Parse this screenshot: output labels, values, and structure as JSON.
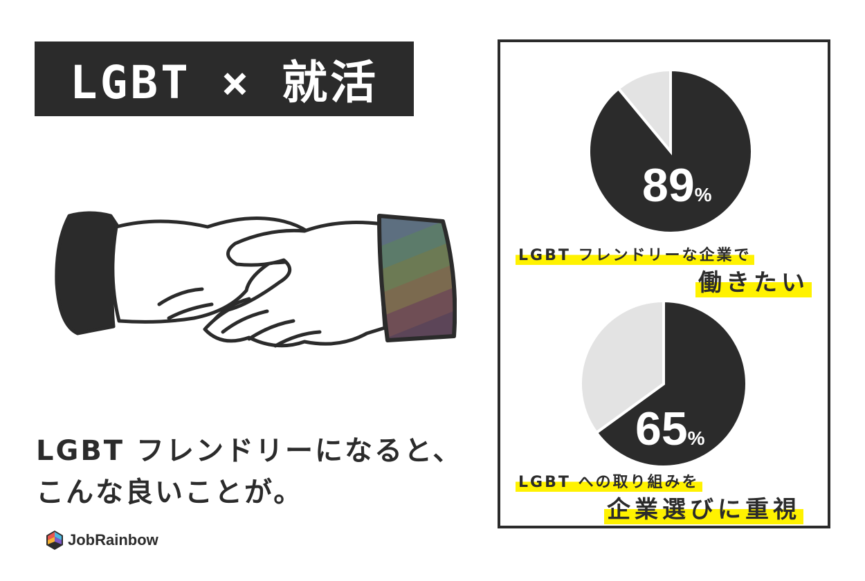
{
  "title": "LGBT × 就活",
  "caption": {
    "line1": "LGBT フレンドリーになると、",
    "line2": "こんな良いことが。"
  },
  "logo": {
    "name": "JobRainbow",
    "icon": "rainbow-gem-icon"
  },
  "colors": {
    "dark": "#2b2b2b",
    "light_slice": "#e3e3e3",
    "highlight": "#fff200",
    "cuff_stripes": [
      "#5d6f80",
      "#5c7b6a",
      "#6c7a54",
      "#7b6a4f",
      "#6f4e55",
      "#5c4558"
    ]
  },
  "chart_data": [
    {
      "type": "pie",
      "slices": [
        {
          "value": 89,
          "color": "#2b2b2b"
        },
        {
          "value": 11,
          "color": "#e3e3e3"
        }
      ],
      "percent_label": "89",
      "unit": "%",
      "caption_small": "LGBT フレンドリーな企業で",
      "caption_big": "働きたい"
    },
    {
      "type": "pie",
      "slices": [
        {
          "value": 65,
          "color": "#2b2b2b"
        },
        {
          "value": 35,
          "color": "#e3e3e3"
        }
      ],
      "percent_label": "65",
      "unit": "%",
      "caption_small": "LGBT への取り組みを",
      "caption_big": "企業選びに重視"
    }
  ]
}
